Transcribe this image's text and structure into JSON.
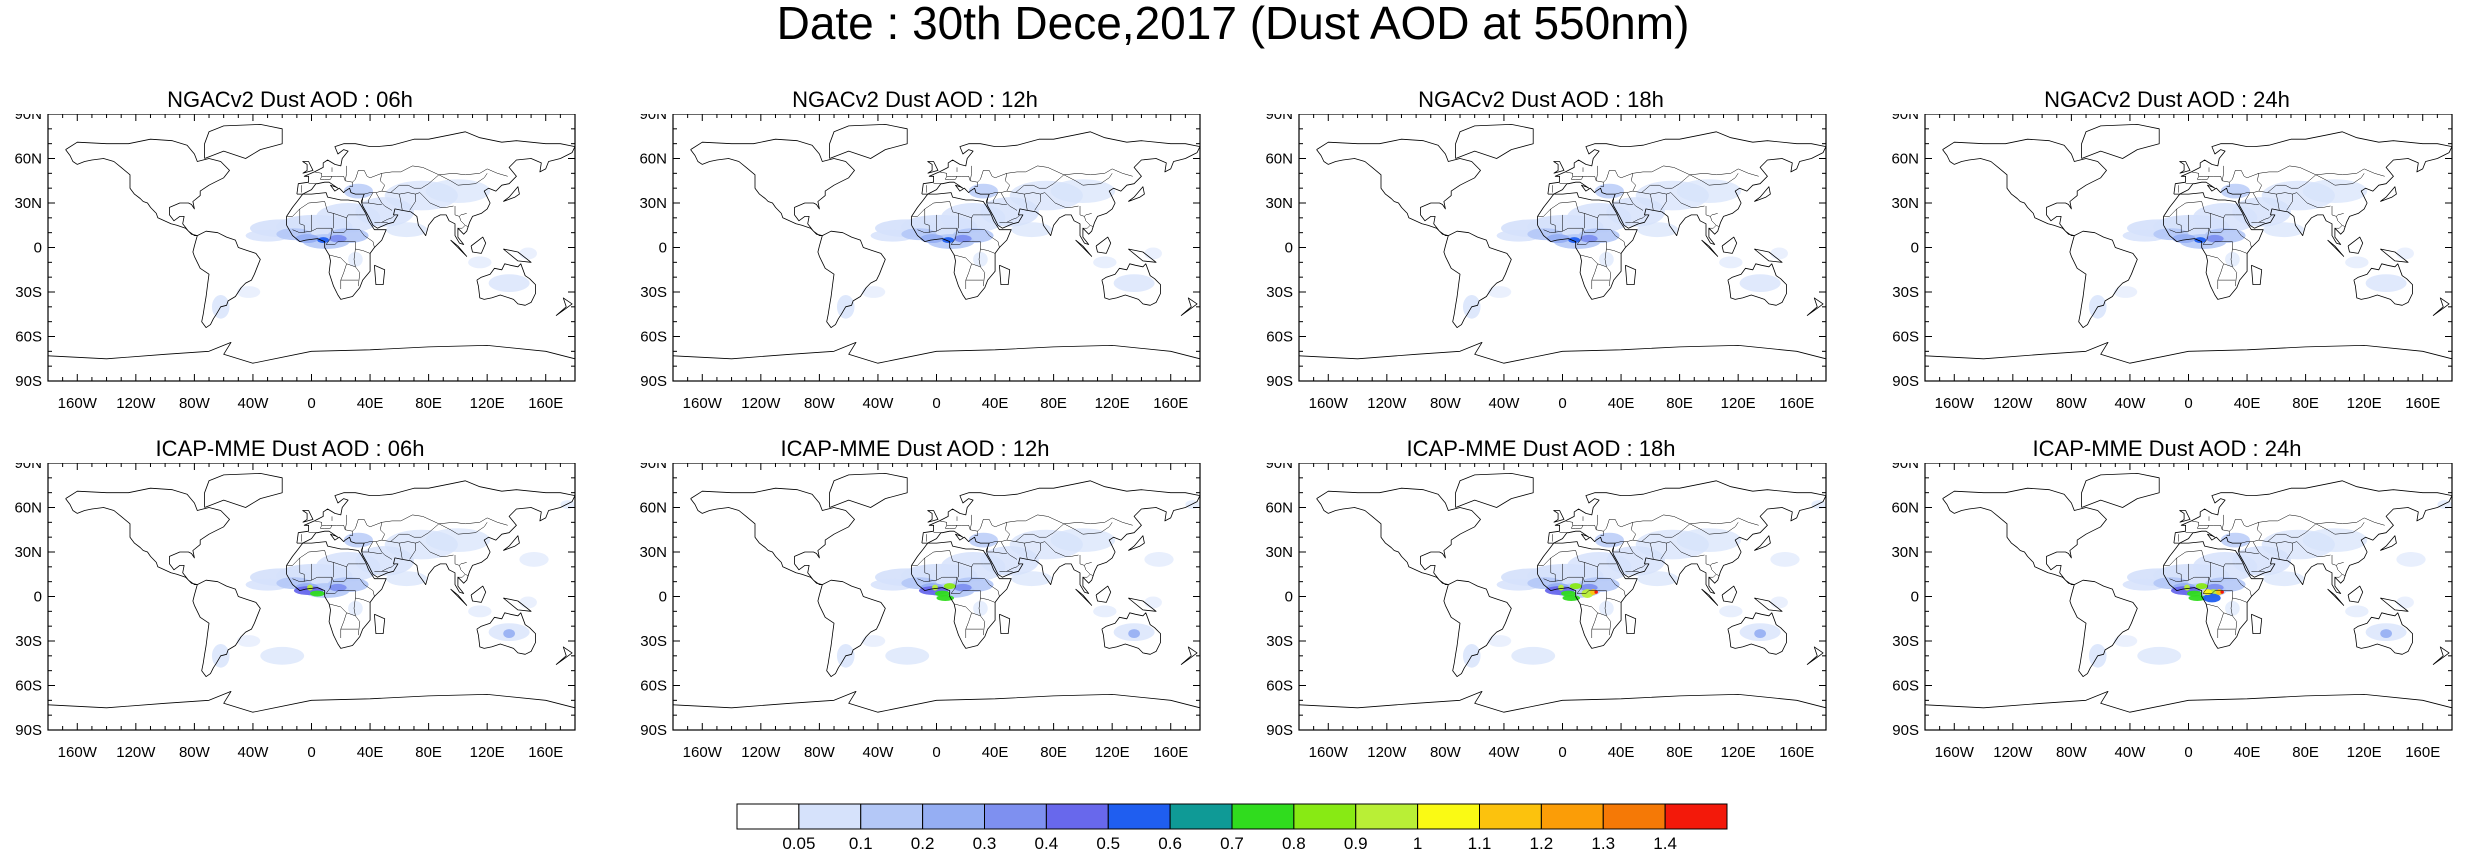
{
  "title": "Date : 30th Dece,2017 (Dust AOD at 550nm)",
  "lat_labels": [
    "90N",
    "60N",
    "30N",
    "0",
    "30S",
    "60S",
    "90S"
  ],
  "lon_labels": [
    "160W",
    "120W",
    "80W",
    "40W",
    "0",
    "40E",
    "80E",
    "120E",
    "160E"
  ],
  "panels": [
    {
      "title": "NGACv2 Dust AOD : 06h",
      "row": 0,
      "col": 0,
      "model": "NGACv2"
    },
    {
      "title": "NGACv2 Dust AOD : 12h",
      "row": 0,
      "col": 1,
      "model": "NGACv2"
    },
    {
      "title": "NGACv2 Dust AOD : 18h",
      "row": 0,
      "col": 2,
      "model": "NGACv2"
    },
    {
      "title": "NGACv2 Dust AOD : 24h",
      "row": 0,
      "col": 3,
      "model": "NGACv2"
    },
    {
      "title": "ICAP-MME Dust AOD : 06h",
      "row": 1,
      "col": 0,
      "model": "ICAP"
    },
    {
      "title": "ICAP-MME Dust AOD : 12h",
      "row": 1,
      "col": 1,
      "model": "ICAP"
    },
    {
      "title": "ICAP-MME Dust AOD : 18h",
      "row": 1,
      "col": 2,
      "model": "ICAP"
    },
    {
      "title": "ICAP-MME Dust AOD : 24h",
      "row": 1,
      "col": 3,
      "model": "ICAP"
    }
  ],
  "colorbar": {
    "labels": [
      "0.05",
      "0.1",
      "0.2",
      "0.3",
      "0.4",
      "0.5",
      "0.6",
      "0.7",
      "0.8",
      "0.9",
      "1",
      "1.1",
      "1.2",
      "1.3",
      "1.4"
    ],
    "colors": [
      "#ffffff",
      "#d6e2fb",
      "#b4c8f7",
      "#95aef3",
      "#7e90f0",
      "#6868ec",
      "#1f5ef0",
      "#0f9a96",
      "#30dc1e",
      "#88ea14",
      "#b9ef36",
      "#fafa14",
      "#fcc20d",
      "#fb9d07",
      "#f57906",
      "#f3190a"
    ]
  }
}
